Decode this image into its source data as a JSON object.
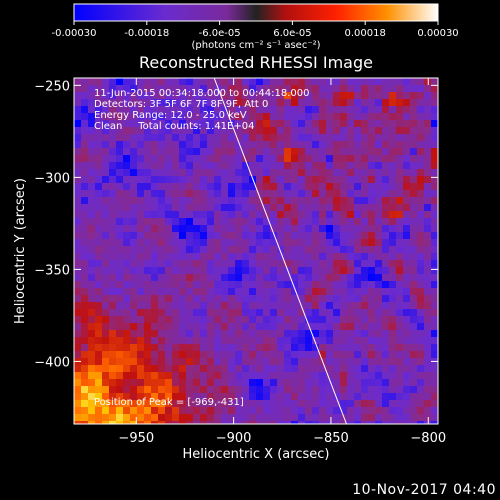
{
  "footer": {
    "timestamp": "10-Nov-2017 04:40"
  },
  "colorbar": {
    "tick_labels": [
      "-0.00030",
      "-0.00018",
      "-6.0e-05",
      "6.0e-05",
      "0.00018",
      "0.00030"
    ],
    "tick_values": [
      -0.0003,
      -0.00018,
      -6e-05,
      6e-05,
      0.00018,
      0.0003
    ],
    "min": -0.0003,
    "max": 0.0003,
    "units": "(photons cm⁻² s⁻¹ asec⁻²)"
  },
  "chart_data": {
    "type": "heatmap",
    "title": "Reconstructed RHESSI Image",
    "xlabel": "Heliocentric X (arcsec)",
    "ylabel": "Heliocentric Y (arcsec)",
    "xlim": [
      -982,
      -795
    ],
    "ylim": [
      -434,
      -246
    ],
    "x_ticks": [
      -950,
      -900,
      -850,
      -800
    ],
    "y_ticks": [
      -400,
      -350,
      -300,
      -250
    ],
    "x_tick_labels": [
      "−950",
      "−900",
      "−850",
      "−800"
    ],
    "y_tick_labels": [
      "−400",
      "−350",
      "−300",
      "−250"
    ],
    "annotations": [
      "11-Jun-2015 00:34:18.000 to 00:44:18.000",
      "Detectors: 3F 5F 6F 7F 8F 9F, Att 0",
      "Energy Range: 12.0 - 25.0 keV",
      "Clean     Total counts: 1.41E+04"
    ],
    "peak_label": "Position of Peak = [-969,-431]",
    "peak": [
      -969,
      -431
    ],
    "limb_line": [
      [
        -910,
        -246
      ],
      [
        -842,
        -434
      ]
    ],
    "colormap": [
      "#0000ff",
      "#6a2bcf",
      "#8a2a8a",
      "#c01010",
      "#ff6000",
      "#ffcc00",
      "#ffffff"
    ],
    "grid": false
  }
}
